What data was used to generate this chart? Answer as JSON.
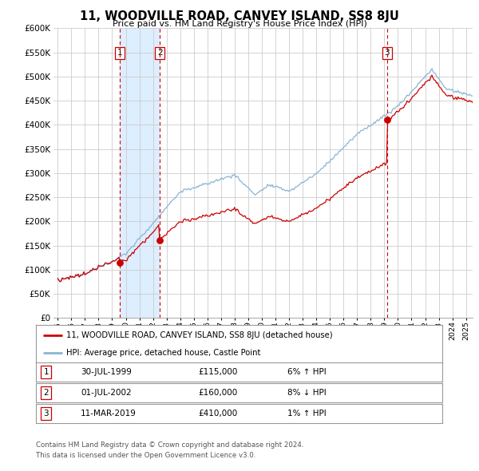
{
  "title": "11, WOODVILLE ROAD, CANVEY ISLAND, SS8 8JU",
  "subtitle": "Price paid vs. HM Land Registry's House Price Index (HPI)",
  "ylim": [
    0,
    600000
  ],
  "yticks": [
    0,
    50000,
    100000,
    150000,
    200000,
    250000,
    300000,
    350000,
    400000,
    450000,
    500000,
    550000,
    600000
  ],
  "xlim_start": 1994.7,
  "xlim_end": 2025.5,
  "sale_dates": [
    1999.58,
    2002.5,
    2019.19
  ],
  "sale_prices": [
    115000,
    160000,
    410000
  ],
  "sale_labels": [
    "1",
    "2",
    "3"
  ],
  "hpi_color": "#89b4d4",
  "price_color": "#cc0000",
  "shade_color": "#ddeeff",
  "legend_label_price": "11, WOODVILLE ROAD, CANVEY ISLAND, SS8 8JU (detached house)",
  "legend_label_hpi": "HPI: Average price, detached house, Castle Point",
  "table_rows": [
    [
      "1",
      "30-JUL-1999",
      "£115,000",
      "6% ↑ HPI"
    ],
    [
      "2",
      "01-JUL-2002",
      "£160,000",
      "8% ↓ HPI"
    ],
    [
      "3",
      "11-MAR-2019",
      "£410,000",
      "1% ↑ HPI"
    ]
  ],
  "footer": "Contains HM Land Registry data © Crown copyright and database right 2024.\nThis data is licensed under the Open Government Licence v3.0.",
  "background_color": "#ffffff"
}
